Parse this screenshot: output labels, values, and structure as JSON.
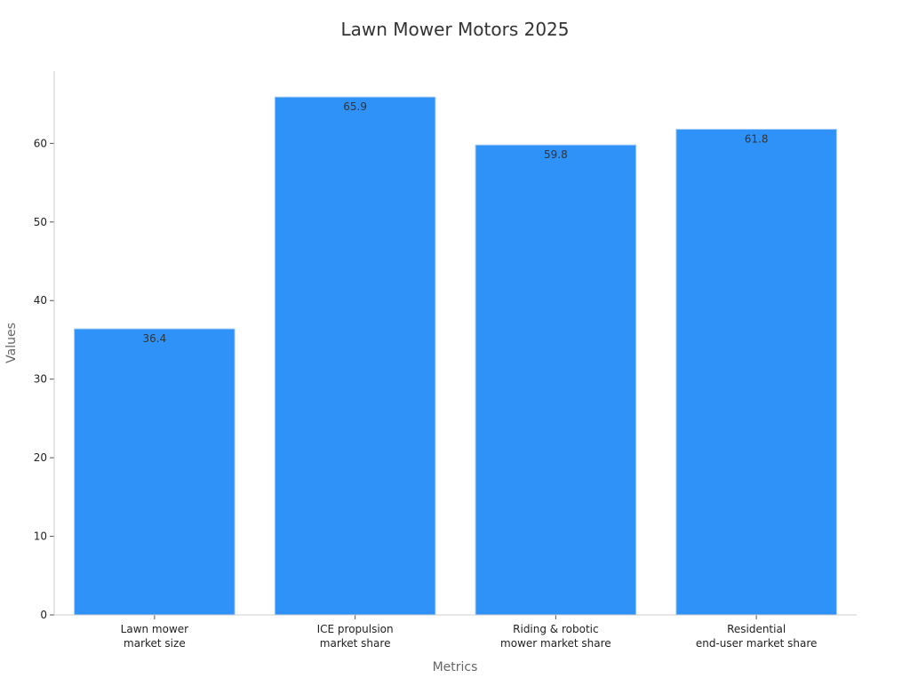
{
  "chart_data": {
    "type": "bar",
    "title": "Lawn Mower Motors 2025",
    "xlabel": "Metrics",
    "ylabel": "Values",
    "categories": [
      [
        "Lawn mower",
        "market size"
      ],
      [
        "ICE propulsion",
        "market share"
      ],
      [
        "Riding & robotic",
        "mower market share"
      ],
      [
        "Residential",
        "end-user market share"
      ]
    ],
    "values": [
      36.4,
      65.9,
      59.8,
      61.8
    ],
    "value_labels": [
      "36.4",
      "65.9",
      "59.8",
      "61.8"
    ],
    "yticks": [
      0,
      10,
      20,
      30,
      40,
      50,
      60
    ],
    "ylim": [
      0,
      69.2
    ],
    "grid": false,
    "legend": "none",
    "colors": {
      "bar": "#2f92f9",
      "bar_edge": "#a8cdf5"
    }
  }
}
